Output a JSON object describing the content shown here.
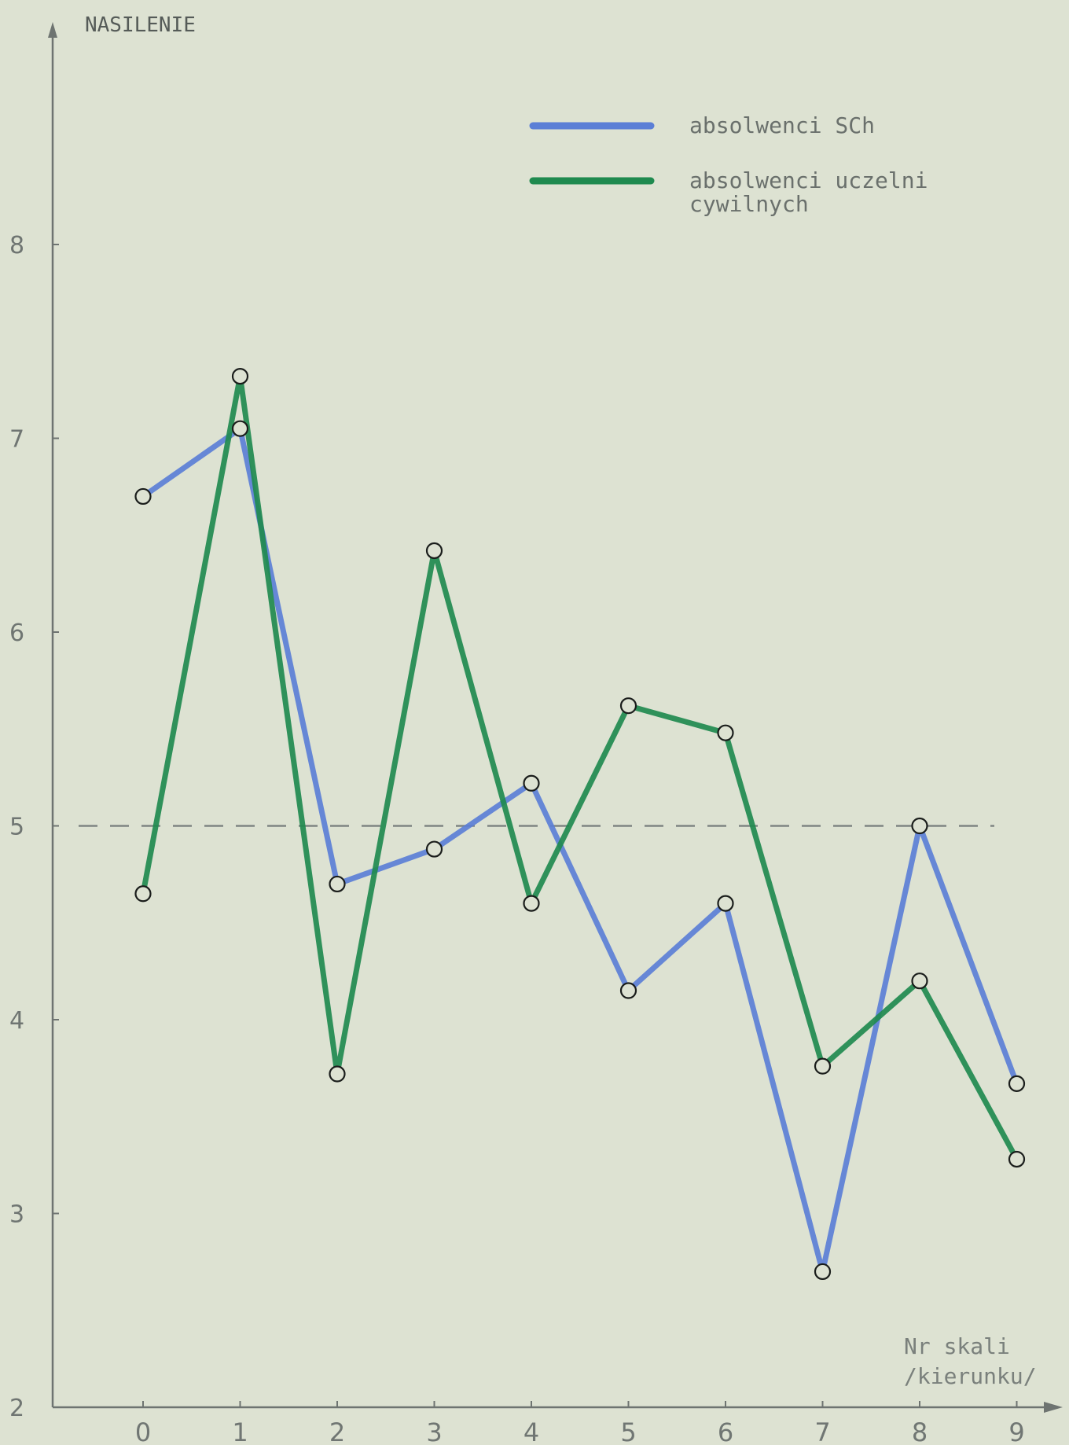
{
  "chart_data": {
    "type": "line",
    "ylabel": "NASILENIE",
    "xlabel": [
      "Nr skali",
      "/kierunku/"
    ],
    "x": [
      0,
      1,
      2,
      3,
      4,
      5,
      6,
      7,
      8,
      9
    ],
    "y_ticks": [
      "2",
      "3",
      "4",
      "5",
      "6",
      "7",
      "8"
    ],
    "x_ticks": [
      "0",
      "1",
      "2",
      "3",
      "4",
      "5",
      "6",
      "7",
      "8",
      "9"
    ],
    "xlim": [
      -0.9,
      9.3
    ],
    "ylim": [
      2,
      8.25
    ],
    "reference_line": 5,
    "grid": false,
    "legend_position": "top-right",
    "series": [
      {
        "name": "absolwenci SCh",
        "name_lines": [
          "absolwenci SCh"
        ],
        "color": "#5b7fd6",
        "values": [
          6.7,
          7.05,
          4.7,
          4.88,
          5.22,
          4.15,
          4.6,
          2.7,
          5.0,
          3.67
        ]
      },
      {
        "name": "absolwenci uczelni cywilnych",
        "name_lines": [
          "absolwenci uczelni",
          "cywilnych"
        ],
        "color": "#1f8a4f",
        "values": [
          4.65,
          7.32,
          3.72,
          6.42,
          4.6,
          5.62,
          5.48,
          3.76,
          4.2,
          3.28
        ]
      }
    ]
  }
}
